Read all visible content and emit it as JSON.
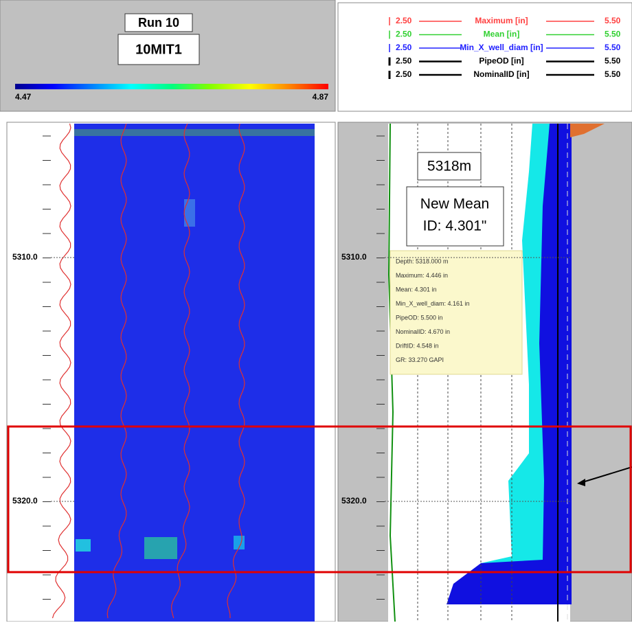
{
  "header": {
    "run": "Run 10",
    "tool": "10MIT1",
    "scale_min": "4.47",
    "scale_max": "4.87"
  },
  "legend": [
    {
      "min": "2.50",
      "name": "Maximum [in]",
      "max": "5.50"
    },
    {
      "min": "2.50",
      "name": "Mean [in]",
      "max": "5.50"
    },
    {
      "min": "2.50",
      "name": "Min_X_well_diam [in]",
      "max": "5.50"
    },
    {
      "min": "2.50",
      "name": "PipeOD [in]",
      "max": "5.50"
    },
    {
      "min": "2.50",
      "name": "NominalID [in]",
      "max": "5.50"
    }
  ],
  "depth_labels": {
    "left": [
      "5310.0",
      "5320.0"
    ],
    "right": [
      "5310.0",
      "5320.0"
    ]
  },
  "annotation": {
    "depth": "5318m",
    "lines": [
      "New Mean",
      "ID: 4.301\""
    ]
  },
  "tooltip": [
    "Depth: 5318.000 m",
    "Maximum: 4.446 in",
    "Mean: 4.301 in",
    "Min_X_well_diam: 4.161 in",
    "PipeOD: 5.500 in",
    "NominalID: 4.670 in",
    "DriftID: 4.548 in",
    "GR: 33.270 GAPI"
  ]
}
